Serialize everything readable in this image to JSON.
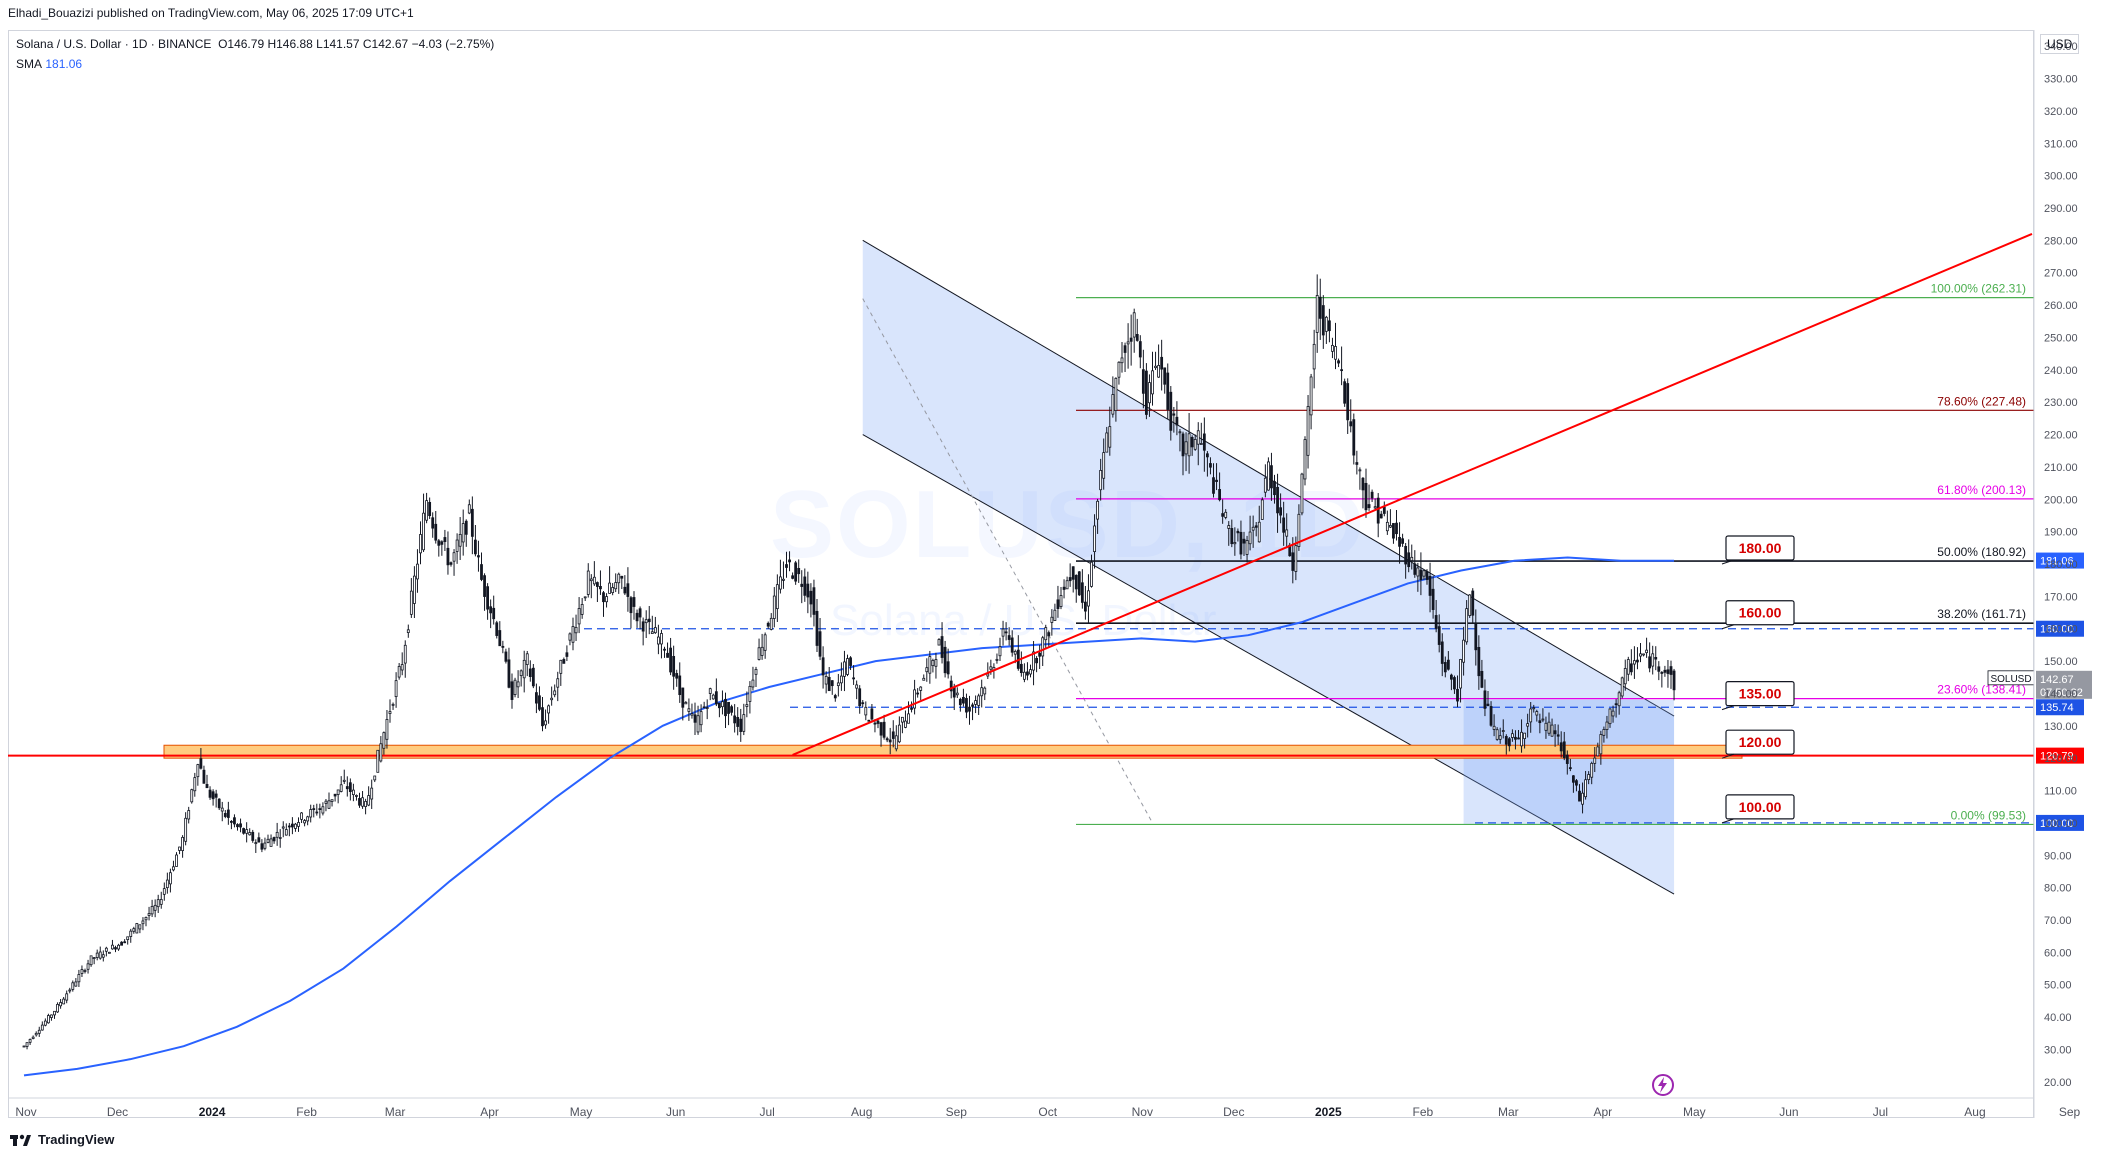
{
  "header": {
    "publisher": "Elhadi_Bouazizi published on TradingView.com, May 06, 2025 17:09 UTC+1"
  },
  "legend": {
    "title": "Solana / U.S. Dollar · 1D · BINANCE",
    "ohlc": "O146.79  H146.88  L141.57  C142.67  −4.03 (−2.75%)",
    "sma_label": "SMA",
    "sma_value": "181.06"
  },
  "watermark": {
    "symbol": "SOLUSD, 1D",
    "name": "Solana / U.S. Dollar"
  },
  "axis": {
    "currency": "USD",
    "footer": "TradingView"
  },
  "colors": {
    "up": "#131722",
    "sma": "#2962ff",
    "support": "#ff0000",
    "fib_green": "#4caf50",
    "fib_darkred": "#8b0000",
    "fib_magenta": "#e600e6",
    "channel_fill": "#bbd0ff"
  },
  "badges": [
    {
      "text": "181.06",
      "price": 181.06,
      "color": "#2962ff"
    },
    {
      "text": "160.00",
      "price": 160.0,
      "color": "#1e53e5"
    },
    {
      "text": "SOLUSD",
      "price": 142.67,
      "color": "#9598a1",
      "second": "142.67",
      "third": "07:50:32"
    },
    {
      "text": "135.74",
      "price": 135.74,
      "color": "#1e53e5"
    },
    {
      "text": "120.79",
      "price": 120.79,
      "color": "#ff0000"
    },
    {
      "text": "100.00",
      "price": 100.0,
      "color": "#1e53e5"
    }
  ],
  "callouts": [
    {
      "text": "180.00",
      "price": 180
    },
    {
      "text": "160.00",
      "price": 160
    },
    {
      "text": "135.00",
      "price": 135
    },
    {
      "text": "120.00",
      "price": 120
    },
    {
      "text": "100.00",
      "price": 100
    }
  ],
  "fib_levels": [
    {
      "label": "100.00% (262.31)",
      "price": 262.31,
      "color": "#4caf50"
    },
    {
      "label": "78.60% (227.48)",
      "price": 227.48,
      "color": "#8b0000"
    },
    {
      "label": "61.80% (200.13)",
      "price": 200.13,
      "color": "#e600e6"
    },
    {
      "label": "50.00% (180.92)",
      "price": 180.92,
      "color": "#131722"
    },
    {
      "label": "38.20% (161.71)",
      "price": 161.71,
      "color": "#131722"
    },
    {
      "label": "23.60% (138.41)",
      "price": 138.41,
      "color": "#e600e6"
    },
    {
      "label": "0.00% (99.53)",
      "price": 99.53,
      "color": "#4caf50"
    }
  ],
  "chart_data": {
    "type": "candlestick",
    "title": "Solana / U.S. Dollar · 1D · BINANCE",
    "ylabel": "USD",
    "ylim": [
      15,
      345
    ],
    "y_ticks": [
      20,
      30,
      40,
      50,
      60,
      70,
      80,
      90,
      100,
      110,
      120,
      130,
      140,
      150,
      160,
      170,
      180,
      190,
      200,
      210,
      220,
      230,
      240,
      250,
      260,
      270,
      280,
      290,
      300,
      310,
      320,
      330,
      340
    ],
    "x_labels": [
      "Nov",
      "Dec",
      "2024",
      "Feb",
      "Mar",
      "Apr",
      "May",
      "Jun",
      "Jul",
      "Aug",
      "Sep",
      "Oct",
      "Nov",
      "Dec",
      "2025",
      "Feb",
      "Mar",
      "Apr",
      "May",
      "Jun",
      "Jul",
      "Aug",
      "Sep"
    ],
    "price_path": [
      [
        0,
        31
      ],
      [
        10,
        42
      ],
      [
        22,
        58
      ],
      [
        32,
        63
      ],
      [
        44,
        75
      ],
      [
        52,
        95
      ],
      [
        57,
        120
      ],
      [
        60,
        110
      ],
      [
        68,
        100
      ],
      [
        78,
        93
      ],
      [
        88,
        100
      ],
      [
        98,
        105
      ],
      [
        105,
        112
      ],
      [
        112,
        105
      ],
      [
        118,
        128
      ],
      [
        124,
        150
      ],
      [
        128,
        175
      ],
      [
        132,
        200
      ],
      [
        135,
        190
      ],
      [
        140,
        180
      ],
      [
        146,
        195
      ],
      [
        150,
        175
      ],
      [
        155,
        160
      ],
      [
        160,
        140
      ],
      [
        165,
        150
      ],
      [
        170,
        130
      ],
      [
        175,
        145
      ],
      [
        180,
        160
      ],
      [
        185,
        175
      ],
      [
        190,
        170
      ],
      [
        196,
        175
      ],
      [
        200,
        165
      ],
      [
        205,
        160
      ],
      [
        210,
        155
      ],
      [
        215,
        140
      ],
      [
        220,
        130
      ],
      [
        225,
        140
      ],
      [
        230,
        135
      ],
      [
        235,
        130
      ],
      [
        240,
        150
      ],
      [
        245,
        165
      ],
      [
        250,
        180
      ],
      [
        255,
        175
      ],
      [
        258,
        170
      ],
      [
        262,
        145
      ],
      [
        266,
        140
      ],
      [
        270,
        150
      ],
      [
        275,
        135
      ],
      [
        280,
        130
      ],
      [
        285,
        125
      ],
      [
        290,
        135
      ],
      [
        295,
        145
      ],
      [
        300,
        155
      ],
      [
        305,
        140
      ],
      [
        310,
        135
      ],
      [
        316,
        145
      ],
      [
        322,
        160
      ],
      [
        327,
        145
      ],
      [
        332,
        152
      ],
      [
        336,
        160
      ],
      [
        340,
        172
      ],
      [
        344,
        178
      ],
      [
        348,
        165
      ],
      [
        352,
        200
      ],
      [
        356,
        225
      ],
      [
        360,
        245
      ],
      [
        364,
        255
      ],
      [
        368,
        230
      ],
      [
        372,
        245
      ],
      [
        376,
        225
      ],
      [
        380,
        215
      ],
      [
        385,
        220
      ],
      [
        390,
        205
      ],
      [
        395,
        190
      ],
      [
        400,
        185
      ],
      [
        404,
        190
      ],
      [
        408,
        210
      ],
      [
        412,
        195
      ],
      [
        416,
        180
      ],
      [
        420,
        215
      ],
      [
        424,
        260
      ],
      [
        428,
        250
      ],
      [
        432,
        240
      ],
      [
        436,
        215
      ],
      [
        440,
        200
      ],
      [
        445,
        195
      ],
      [
        450,
        188
      ],
      [
        455,
        180
      ],
      [
        460,
        175
      ],
      [
        465,
        150
      ],
      [
        470,
        140
      ],
      [
        474,
        172
      ],
      [
        478,
        140
      ],
      [
        482,
        128
      ],
      [
        486,
        126
      ],
      [
        490,
        125
      ],
      [
        494,
        135
      ],
      [
        498,
        130
      ],
      [
        502,
        128
      ],
      [
        506,
        118
      ],
      [
        510,
        107
      ],
      [
        514,
        118
      ],
      [
        518,
        128
      ],
      [
        522,
        138
      ],
      [
        526,
        148
      ],
      [
        530,
        152
      ],
      [
        534,
        150
      ],
      [
        538,
        148
      ],
      [
        541,
        143
      ]
    ],
    "sma_values": [
      22,
      24,
      27,
      31,
      37,
      45,
      55,
      68,
      82,
      95,
      108,
      120,
      130,
      137,
      142,
      146,
      150,
      152,
      154,
      155,
      156,
      157,
      156,
      158,
      162,
      168,
      174,
      178,
      181,
      182,
      181,
      181
    ],
    "support_band": [
      120,
      124
    ],
    "channel": {
      "upper": [
        [
          275,
          280
        ],
        [
          541,
          133
        ]
      ],
      "lower": [
        [
          275,
          220
        ],
        [
          541,
          78
        ]
      ]
    },
    "trend_line": {
      "points": [
        [
          252,
          121
        ],
        [
          720,
          282
        ]
      ]
    },
    "horizontal_levels": [
      {
        "price": 160.0,
        "style": "dashed",
        "color": "#1e53e5"
      },
      {
        "price": 135.74,
        "style": "dashed",
        "color": "#1e53e5"
      },
      {
        "price": 120.79,
        "style": "solid",
        "color": "#ff0000"
      },
      {
        "price": 100.0,
        "style": "dashed",
        "color": "#1e53e5"
      }
    ]
  }
}
